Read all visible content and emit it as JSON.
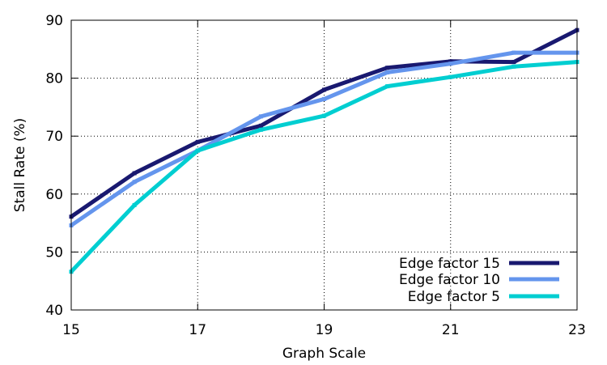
{
  "chart_data": {
    "type": "line",
    "xlabel": "Graph Scale",
    "ylabel": "Stall Rate (%)",
    "xlim": [
      15,
      23
    ],
    "ylim": [
      40,
      90
    ],
    "x_ticks": [
      15,
      17,
      19,
      21,
      23
    ],
    "y_ticks": [
      40,
      50,
      60,
      70,
      80,
      90
    ],
    "grid": true,
    "legend_position": "bottom-right",
    "x": [
      15,
      16,
      17,
      18,
      19,
      20,
      21,
      22,
      23
    ],
    "series": [
      {
        "name": "Edge factor 15",
        "color": "#191970",
        "values": [
          56.1,
          63.6,
          69.0,
          71.8,
          78.0,
          81.8,
          82.9,
          82.8,
          88.3
        ]
      },
      {
        "name": "Edge factor 10",
        "color": "#6495ed",
        "values": [
          54.6,
          62.1,
          67.5,
          73.4,
          76.4,
          81.0,
          82.5,
          84.4,
          84.4
        ]
      },
      {
        "name": "Edge factor 5",
        "color": "#00ced1",
        "values": [
          46.6,
          58.1,
          67.5,
          71.1,
          73.5,
          78.6,
          80.2,
          82.0,
          82.8
        ]
      }
    ]
  }
}
